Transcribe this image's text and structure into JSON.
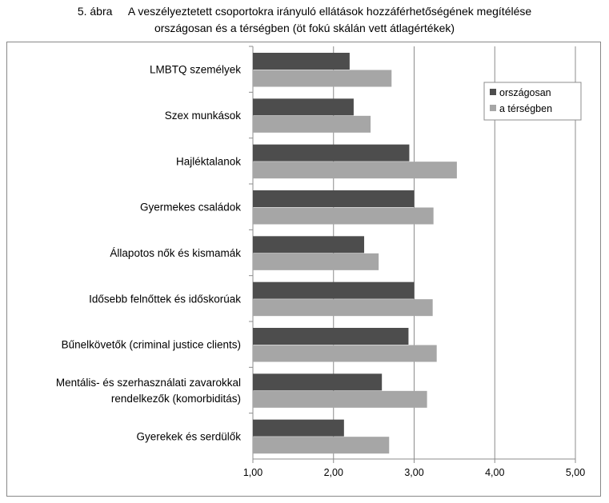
{
  "title": {
    "line1_prefix": "5. ábra",
    "line1": "A veszélyeztetett csoportokra irányuló ellátások hozzáférhetőségének megítélése",
    "line2": "országosan és a térségben (öt fokú skálán vett átlagértékek)"
  },
  "chart_data": {
    "type": "bar",
    "orientation": "horizontal",
    "categories": [
      "LMBTQ személyek",
      "Szex munkások",
      "Hajléktalanok",
      "Gyermekes családok",
      "Állapotos nők és kismamák",
      "Idősebb felnőttek és időskorúak",
      "Bűnelkövetők (criminal justice clients)",
      "Mentális- és szerhasználati zavarokkal rendelkezők (komorbiditás)",
      "Gyerekek és serdülők"
    ],
    "category_lines": [
      [
        "LMBTQ személyek"
      ],
      [
        "Szex munkások"
      ],
      [
        "Hajléktalanok"
      ],
      [
        "Gyermekes családok"
      ],
      [
        "Állapotos nők és kismamák"
      ],
      [
        "Idősebb felnőttek és időskorúak"
      ],
      [
        "Bűnelkövetők (criminal justice clients)"
      ],
      [
        "Mentális- és szerhasználati zavarokkal",
        "rendelkezők (komorbiditás)"
      ],
      [
        "Gyerekek és serdülők"
      ]
    ],
    "series": [
      {
        "name": "országosan",
        "color": "#4d4d4d",
        "values": [
          2.2,
          2.25,
          2.94,
          3.0,
          2.38,
          3.0,
          2.93,
          2.6,
          2.13
        ]
      },
      {
        "name": "a térségben",
        "color": "#a6a6a6",
        "values": [
          2.72,
          2.46,
          3.53,
          3.24,
          2.56,
          3.23,
          3.28,
          3.16,
          2.69
        ]
      }
    ],
    "xlim": [
      1,
      5
    ],
    "xticks": [
      "1,00",
      "2,00",
      "3,00",
      "4,00",
      "5,00"
    ],
    "grid": true,
    "legend": "top-right"
  }
}
